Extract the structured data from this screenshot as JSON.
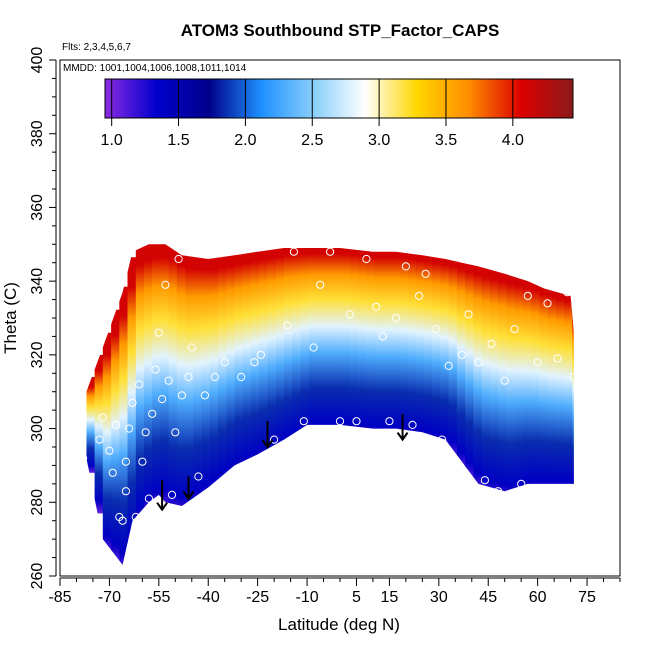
{
  "chart_data": {
    "type": "heatmap",
    "title": "ATOM3 Southbound STP_Factor_CAPS",
    "subtitle_flights": "Flts: 2,3,4,5,6,7",
    "subtitle_dates": "MMDD: 1001,1004,1006,1008,1011,1014",
    "xlabel": "Latitude (deg N)",
    "ylabel": "Theta (C)",
    "xlim": [
      -85,
      85
    ],
    "ylim": [
      260,
      400
    ],
    "x_ticks": [
      -85,
      -70,
      -55,
      -40,
      -25,
      -10,
      5,
      15,
      30,
      45,
      60,
      75
    ],
    "x_tick_labels": [
      "-85",
      "-70",
      "-55",
      "-40",
      "-25",
      "-10",
      "5",
      "15",
      "30",
      "45",
      "60",
      "75"
    ],
    "y_ticks": [
      260,
      280,
      300,
      320,
      340,
      360,
      380,
      400
    ],
    "y_tick_labels": [
      "260",
      "280",
      "300",
      "320",
      "340",
      "360",
      "380",
      "400"
    ],
    "colorbar": {
      "range": [
        0.95,
        4.45
      ],
      "ticks": [
        1.0,
        1.5,
        2.0,
        2.5,
        3.0,
        3.5,
        4.0
      ],
      "tick_labels": [
        "1.0",
        "1.5",
        "2.0",
        "2.5",
        "3.0",
        "3.5",
        "4.0"
      ],
      "colors": [
        "#8a2be2",
        "#0000cd",
        "#00008b",
        "#1e90ff",
        "#87cefa",
        "#ffffff",
        "#ffd700",
        "#ff8c00",
        "#dc0000",
        "#8b1a1a"
      ]
    },
    "field_boundary": {
      "lat": [
        -77,
        -72,
        -66,
        -63,
        -58,
        -55,
        -53,
        -48,
        -40,
        -32,
        -25,
        -17,
        -10,
        0,
        10,
        17,
        25,
        32,
        37,
        42,
        50,
        57,
        62,
        66,
        70,
        71
      ],
      "theta_bottom": [
        292,
        270,
        263,
        275,
        280,
        282,
        280,
        279,
        284,
        290,
        293,
        297,
        301,
        301,
        300,
        300,
        299,
        297,
        291,
        285,
        283,
        285,
        285,
        285,
        285,
        285
      ],
      "theta_top": [
        310,
        322,
        337,
        348,
        350,
        350,
        350,
        347,
        346,
        347,
        348,
        349,
        349,
        349,
        348,
        348,
        347,
        346,
        345,
        344,
        342,
        340,
        338,
        337,
        336,
        326
      ]
    },
    "color_bands": [
      {
        "value": 1.05,
        "top_offset": 0
      },
      {
        "value": 1.4,
        "top_offset": 0.08
      },
      {
        "value": 1.85,
        "top_offset": 0.25
      },
      {
        "value": 2.3,
        "top_offset": 0.42
      },
      {
        "value": 2.8,
        "top_offset": 0.55
      },
      {
        "value": 3.2,
        "top_offset": 0.68
      },
      {
        "value": 3.6,
        "top_offset": 0.8
      },
      {
        "value": 4.1,
        "top_offset": 0.9
      }
    ],
    "observations": [
      {
        "lat": -78,
        "theta": 292
      },
      {
        "lat": -76,
        "theta": 284
      },
      {
        "lat": -73,
        "theta": 297
      },
      {
        "lat": -72,
        "theta": 303
      },
      {
        "lat": -70,
        "theta": 294
      },
      {
        "lat": -69,
        "theta": 288
      },
      {
        "lat": -68,
        "theta": 301
      },
      {
        "lat": -67,
        "theta": 276
      },
      {
        "lat": -66,
        "theta": 275
      },
      {
        "lat": -65,
        "theta": 283
      },
      {
        "lat": -65,
        "theta": 291
      },
      {
        "lat": -64,
        "theta": 300
      },
      {
        "lat": -63,
        "theta": 307
      },
      {
        "lat": -62,
        "theta": 276
      },
      {
        "lat": -61,
        "theta": 312
      },
      {
        "lat": -60,
        "theta": 291
      },
      {
        "lat": -59,
        "theta": 299
      },
      {
        "lat": -58,
        "theta": 281
      },
      {
        "lat": -57,
        "theta": 304
      },
      {
        "lat": -56,
        "theta": 316
      },
      {
        "lat": -55,
        "theta": 326
      },
      {
        "lat": -54,
        "theta": 308
      },
      {
        "lat": -53,
        "theta": 339
      },
      {
        "lat": -52,
        "theta": 313
      },
      {
        "lat": -51,
        "theta": 282
      },
      {
        "lat": -50,
        "theta": 299
      },
      {
        "lat": -49,
        "theta": 346
      },
      {
        "lat": -48,
        "theta": 309
      },
      {
        "lat": -46,
        "theta": 314
      },
      {
        "lat": -45,
        "theta": 322
      },
      {
        "lat": -43,
        "theta": 287
      },
      {
        "lat": -41,
        "theta": 309
      },
      {
        "lat": -38,
        "theta": 314
      },
      {
        "lat": -35,
        "theta": 318
      },
      {
        "lat": -30,
        "theta": 314
      },
      {
        "lat": -26,
        "theta": 318
      },
      {
        "lat": -24,
        "theta": 320
      },
      {
        "lat": -20,
        "theta": 297
      },
      {
        "lat": -16,
        "theta": 328
      },
      {
        "lat": -14,
        "theta": 348
      },
      {
        "lat": -11,
        "theta": 302
      },
      {
        "lat": -8,
        "theta": 322
      },
      {
        "lat": -6,
        "theta": 339
      },
      {
        "lat": -3,
        "theta": 348
      },
      {
        "lat": 0,
        "theta": 302
      },
      {
        "lat": 3,
        "theta": 331
      },
      {
        "lat": 5,
        "theta": 302
      },
      {
        "lat": 8,
        "theta": 346
      },
      {
        "lat": 11,
        "theta": 333
      },
      {
        "lat": 13,
        "theta": 325
      },
      {
        "lat": 15,
        "theta": 302
      },
      {
        "lat": 17,
        "theta": 330
      },
      {
        "lat": 20,
        "theta": 344
      },
      {
        "lat": 22,
        "theta": 301
      },
      {
        "lat": 24,
        "theta": 336
      },
      {
        "lat": 26,
        "theta": 342
      },
      {
        "lat": 29,
        "theta": 327
      },
      {
        "lat": 31,
        "theta": 297
      },
      {
        "lat": 33,
        "theta": 317
      },
      {
        "lat": 35,
        "theta": 291
      },
      {
        "lat": 37,
        "theta": 320
      },
      {
        "lat": 39,
        "theta": 331
      },
      {
        "lat": 42,
        "theta": 318
      },
      {
        "lat": 44,
        "theta": 286
      },
      {
        "lat": 46,
        "theta": 323
      },
      {
        "lat": 48,
        "theta": 283
      },
      {
        "lat": 50,
        "theta": 313
      },
      {
        "lat": 53,
        "theta": 327
      },
      {
        "lat": 55,
        "theta": 285
      },
      {
        "lat": 57,
        "theta": 336
      },
      {
        "lat": 60,
        "theta": 318
      },
      {
        "lat": 63,
        "theta": 334
      },
      {
        "lat": 66,
        "theta": 319
      },
      {
        "lat": 69,
        "theta": 337
      },
      {
        "lat": 71,
        "theta": 314
      }
    ],
    "arrows": [
      {
        "lat": -54,
        "theta_start": 286,
        "theta_end": 278
      },
      {
        "lat": -46,
        "theta_start": 287,
        "theta_end": 281
      },
      {
        "lat": -22,
        "theta_start": 302,
        "theta_end": 295
      },
      {
        "lat": 19,
        "theta_start": 304,
        "theta_end": 297
      }
    ]
  }
}
